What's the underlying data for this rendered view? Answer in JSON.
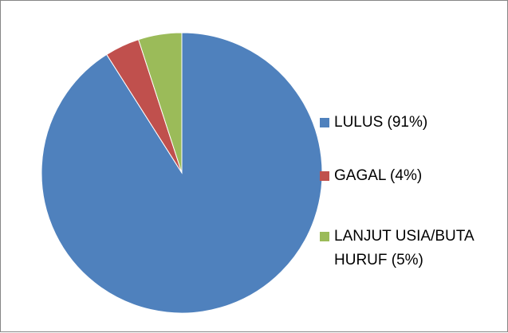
{
  "chart_data": {
    "type": "pie",
    "categories": [
      "LULUS (91%)",
      "GAGAL (4%)",
      "LANJUT USIA/BUTA HURUF (5%)"
    ],
    "values": [
      91,
      4,
      5
    ],
    "colors": [
      "#4f81bd",
      "#c0504d",
      "#9bbb59"
    ],
    "legend": "right"
  }
}
